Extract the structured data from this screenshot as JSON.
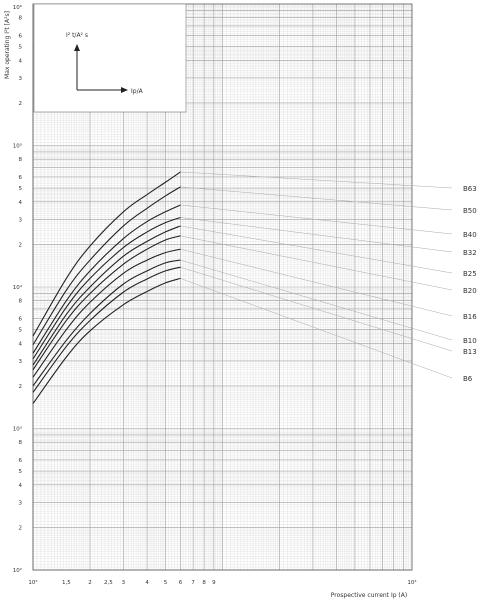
{
  "chart_data": {
    "type": "line",
    "xlabel": "Prospective current Ip (A)",
    "ylabel": "Max operating I²t [A²s]",
    "xscale": "log",
    "yscale": "log",
    "xlim": [
      100,
      10000
    ],
    "ylim": [
      100,
      1000000
    ],
    "x_tick_labels": [
      "10²",
      "1,5",
      "2",
      "2,5",
      "3",
      "4",
      "5",
      "6",
      "7",
      "8",
      "9",
      "10⁴"
    ],
    "y_tick_labels_major": [
      "10²",
      "10³",
      "10⁴",
      "10⁵",
      "10⁶"
    ],
    "y_tick_labels_minor": [
      "2",
      "3",
      "4",
      "5",
      "6",
      "8"
    ],
    "grid": true,
    "inset": {
      "y_axis_label": "I² t/A² s",
      "x_axis_label": "Ip/A"
    },
    "series": [
      {
        "name": "B63",
        "x": [
          100,
          150,
          200,
          300,
          400,
          500,
          600
        ],
        "y": [
          4500,
          11500,
          19500,
          34000,
          45000,
          55000,
          65000
        ]
      },
      {
        "name": "B50",
        "x": [
          100,
          150,
          200,
          300,
          400,
          500,
          600
        ],
        "y": [
          3900,
          9500,
          15500,
          27000,
          36000,
          44000,
          51000
        ]
      },
      {
        "name": "B40",
        "x": [
          100,
          150,
          200,
          300,
          400,
          500,
          600
        ],
        "y": [
          3400,
          8000,
          13000,
          22000,
          29000,
          34000,
          38000
        ]
      },
      {
        "name": "B32",
        "x": [
          100,
          150,
          200,
          300,
          400,
          500,
          600
        ],
        "y": [
          3100,
          7200,
          11500,
          19000,
          24500,
          28500,
          31000
        ]
      },
      {
        "name": "B25",
        "x": [
          100,
          150,
          200,
          300,
          400,
          500,
          600
        ],
        "y": [
          2800,
          6400,
          10000,
          16500,
          21000,
          24500,
          27000
        ]
      },
      {
        "name": "B20",
        "x": [
          100,
          150,
          200,
          300,
          400,
          500,
          600
        ],
        "y": [
          2600,
          5800,
          9000,
          14500,
          18500,
          21500,
          23000
        ]
      },
      {
        "name": "B16",
        "x": [
          100,
          150,
          200,
          300,
          400,
          500,
          600
        ],
        "y": [
          2300,
          5000,
          7800,
          12500,
          15500,
          17500,
          18500
        ]
      },
      {
        "name": "B10",
        "x": [
          100,
          150,
          200,
          300,
          400,
          500,
          600
        ],
        "y": [
          2000,
          4200,
          6500,
          10500,
          13000,
          14800,
          15500
        ]
      },
      {
        "name": "B13",
        "x": [
          100,
          150,
          200,
          300,
          400,
          500,
          600
        ],
        "y": [
          1800,
          3800,
          5800,
          9200,
          11400,
          13000,
          13800
        ]
      },
      {
        "name": "B6",
        "x": [
          100,
          150,
          200,
          300,
          400,
          500,
          600
        ],
        "y": [
          1500,
          3200,
          4900,
          7500,
          9300,
          10700,
          11500
        ]
      }
    ],
    "legend_labels": [
      "B63",
      "B50",
      "B40",
      "B32",
      "B25",
      "B20",
      "B16",
      "B10",
      "B13",
      "B6"
    ]
  }
}
